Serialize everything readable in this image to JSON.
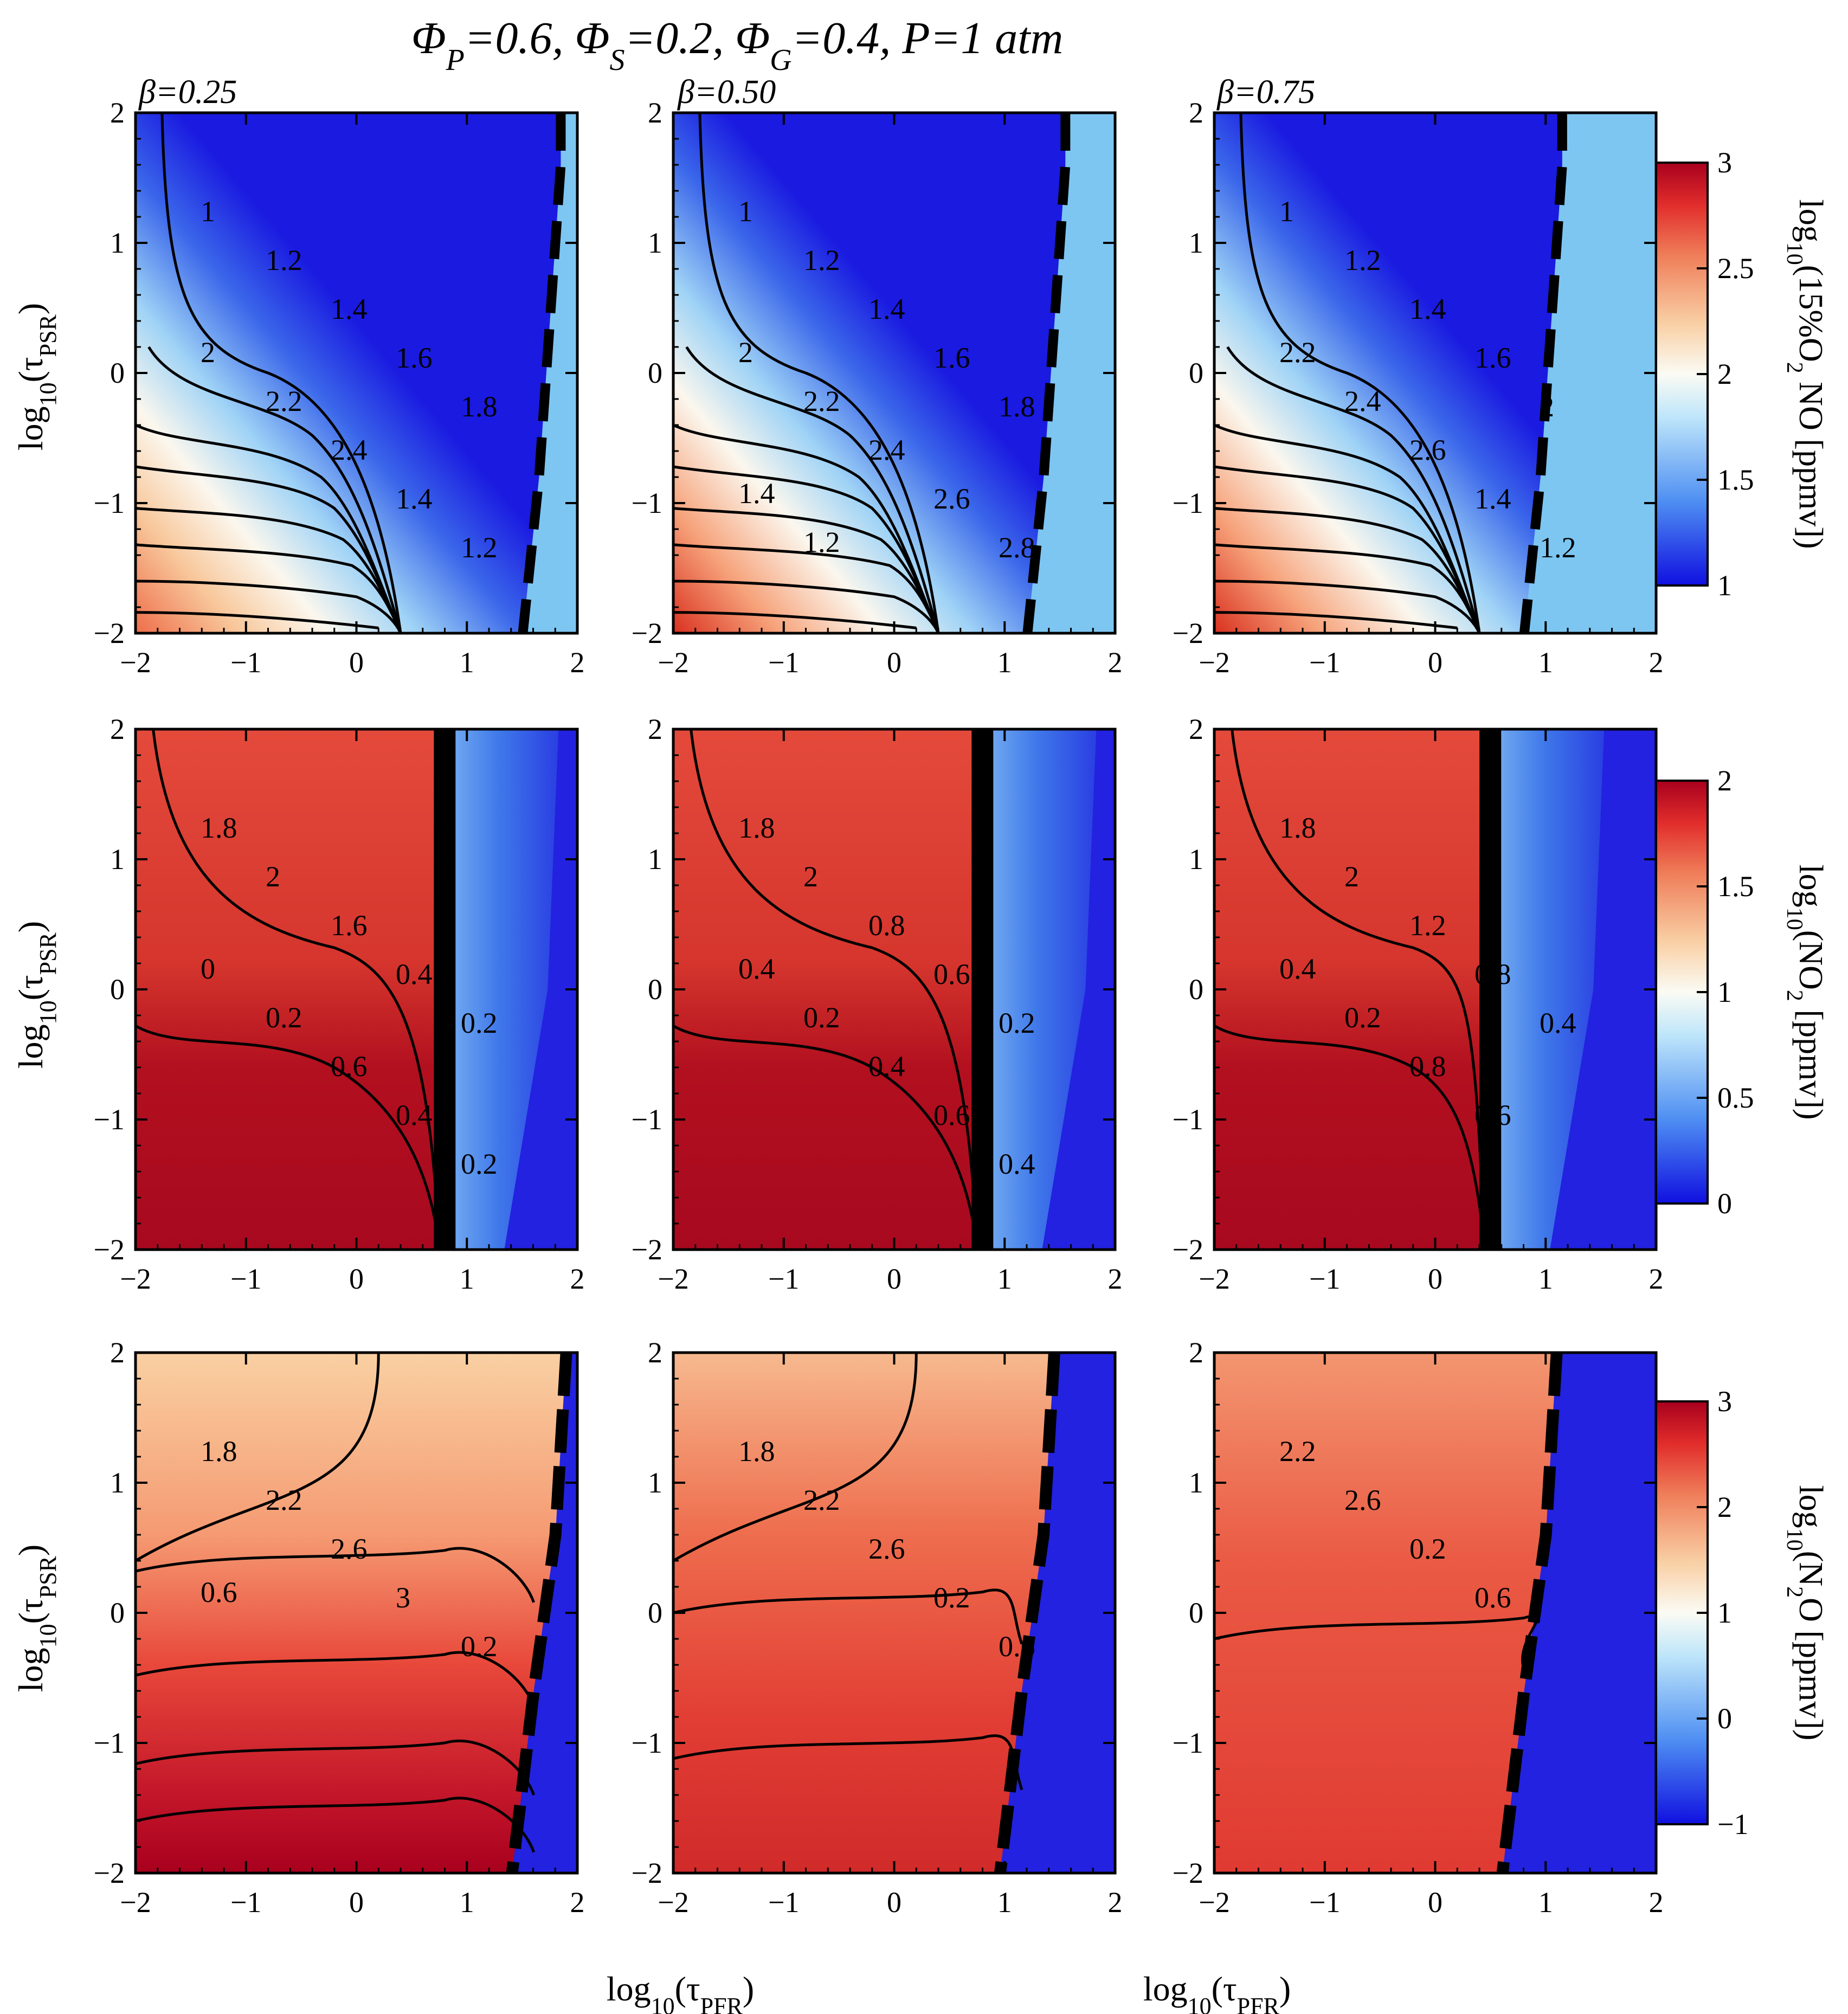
{
  "title": "Φ_P=0.6, Φ_S=0.2, Φ_G=0.4, P=1 atm",
  "title_parts": {
    "p1": "Φ",
    "s1": "P",
    "p2": "=0.6, Φ",
    "s2": "S",
    "p3": "=0.2, Φ",
    "s3": "G",
    "p4": "=0.4, P=1 atm"
  },
  "ylabel": {
    "main": "log",
    "sub": "10",
    "paren": "(τ",
    "var": "PSR",
    "close": ")"
  },
  "xlabel": {
    "main": "log",
    "sub": "10",
    "paren": "(τ",
    "var": "PFR",
    "close": ")"
  },
  "columns": [
    "β=0.25",
    "β=0.50",
    "β=0.75"
  ],
  "rows": [
    {
      "cb_label": "log10(15%O2 NO [ppmv])",
      "cb_ticks": [
        "3",
        "2.5",
        "2",
        "1.5",
        "1"
      ]
    },
    {
      "cb_label": "log10(NO2 [ppmv])",
      "cb_ticks": [
        "2",
        "1.5",
        "1",
        "0.5",
        "0"
      ]
    },
    {
      "cb_label": "log10(N2O [ppmv])",
      "cb_ticks": [
        "3",
        "2",
        "1",
        "0",
        "−1"
      ]
    }
  ],
  "cb_parts": [
    {
      "a": "log",
      "s": "10",
      "b": "(15%O",
      "s2": "2",
      "c": " NO [ppmv])"
    },
    {
      "a": "log",
      "s": "10",
      "b": "(NO",
      "s2": "2",
      "c": " [ppmv])"
    },
    {
      "a": "log",
      "s": "10",
      "b": "(N",
      "s2": "2",
      "c": "O [ppmv])"
    }
  ],
  "x_tick_labels": [
    "−2",
    "−1",
    "0",
    "1",
    "2"
  ],
  "y_tick_labels": [
    "2",
    "1",
    "0",
    "−1",
    "−2"
  ],
  "chart_data": {
    "type": "heatmap",
    "x": [
      -2,
      -1,
      0,
      1,
      2
    ],
    "y": [
      -2,
      -1,
      0,
      1,
      2
    ],
    "xlim": [
      -2,
      2
    ],
    "ylim": [
      -2,
      2
    ],
    "colormap": "blue-white-red",
    "panels": [
      {
        "row": 0,
        "col": 0,
        "beta": 0.25,
        "zlim": [
          1,
          3
        ],
        "contour_labels": [
          "1",
          "1.2",
          "1.4",
          "1.6",
          "1.8",
          "2",
          "2.2",
          "2.4",
          "1.4",
          "1.2"
        ]
      },
      {
        "row": 0,
        "col": 1,
        "beta": 0.5,
        "zlim": [
          1,
          3
        ],
        "contour_labels": [
          "1",
          "1.2",
          "1.4",
          "1.6",
          "1.8",
          "2",
          "2.2",
          "2.4",
          "2.6",
          "2.8",
          "1.4",
          "1.2"
        ]
      },
      {
        "row": 0,
        "col": 2,
        "beta": 0.75,
        "zlim": [
          1,
          3
        ],
        "contour_labels": [
          "1",
          "1.2",
          "1.4",
          "1.6",
          "2",
          "2.2",
          "2.4",
          "2.6",
          "1.4",
          "1.2"
        ]
      },
      {
        "row": 1,
        "col": 0,
        "beta": 0.25,
        "zlim": [
          0,
          2
        ],
        "contour_labels": [
          "1.8",
          "2",
          "1.6",
          "0.4",
          "0.2",
          "0",
          "0.2",
          "0.6",
          "0.4",
          "0.2"
        ]
      },
      {
        "row": 1,
        "col": 1,
        "beta": 0.5,
        "zlim": [
          0,
          2
        ],
        "contour_labels": [
          "1.8",
          "2",
          "0.8",
          "0.6",
          "0.2",
          "0.4",
          "0.2",
          "0.4",
          "0.6",
          "0.4"
        ]
      },
      {
        "row": 1,
        "col": 2,
        "beta": 0.75,
        "zlim": [
          0,
          2
        ],
        "contour_labels": [
          "1.8",
          "2",
          "1.2",
          "0.8",
          "0.4",
          "0.4",
          "0.2",
          "0.8",
          "0.6"
        ]
      },
      {
        "row": 2,
        "col": 0,
        "beta": 0.25,
        "zlim": [
          -1,
          3
        ],
        "contour_labels": [
          "1.8",
          "2.2",
          "2.6",
          "3",
          "0.2",
          "0.6"
        ]
      },
      {
        "row": 2,
        "col": 1,
        "beta": 0.5,
        "zlim": [
          -1,
          3
        ],
        "contour_labels": [
          "1.8",
          "2.2",
          "2.6",
          "0.2",
          "0.6"
        ]
      },
      {
        "row": 2,
        "col": 2,
        "beta": 0.75,
        "zlim": [
          -1,
          3
        ],
        "contour_labels": [
          "2.2",
          "2.6",
          "0.2",
          "0.6"
        ]
      }
    ]
  }
}
